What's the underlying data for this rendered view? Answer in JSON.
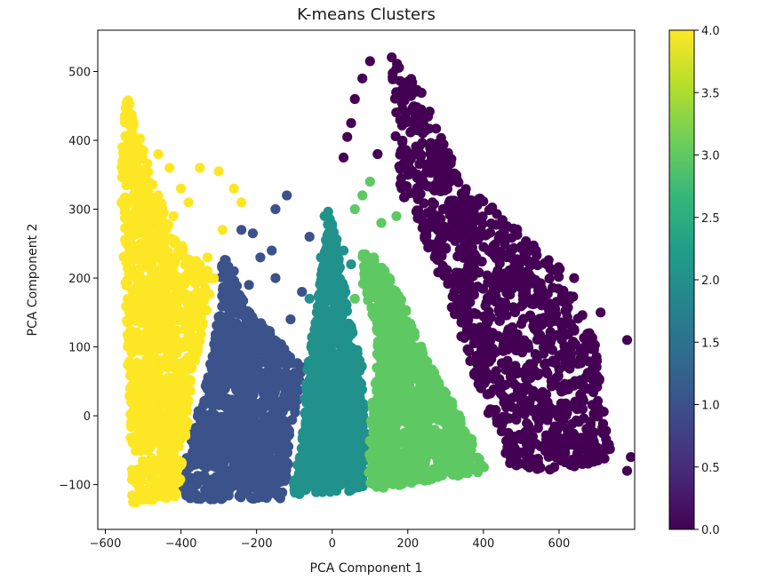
{
  "chart_data": {
    "type": "scatter",
    "title": "K-means Clusters",
    "xlabel": "PCA Component 1",
    "ylabel": "PCA Component 2",
    "xlim": [
      -620,
      800
    ],
    "ylim": [
      -165,
      560
    ],
    "xticks": [
      -600,
      -400,
      -200,
      0,
      200,
      400,
      600
    ],
    "xtick_labels": [
      "−600",
      "−400",
      "−200",
      "0",
      "200",
      "400",
      "600"
    ],
    "yticks": [
      -100,
      0,
      100,
      200,
      300,
      400,
      500
    ],
    "ytick_labels": [
      "−100",
      "0",
      "100",
      "200",
      "300",
      "400",
      "500"
    ],
    "grid": false,
    "colorbar": {
      "min": 0.0,
      "max": 4.0,
      "ticks": [
        0.0,
        0.5,
        1.0,
        1.5,
        2.0,
        2.5,
        3.0,
        3.5,
        4.0
      ],
      "tick_labels": [
        "0.0",
        "0.5",
        "1.0",
        "1.5",
        "2.0",
        "2.5",
        "3.0",
        "3.5",
        "4.0"
      ],
      "colormap": "viridis",
      "stops": [
        "#440154",
        "#482878",
        "#3e4989",
        "#31688e",
        "#26828e",
        "#1f9e89",
        "#35b779",
        "#6ece58",
        "#b5de2b",
        "#fde725"
      ]
    },
    "clusters": [
      {
        "label": 0,
        "color": "#440154",
        "region": [
          [
            155,
            530
          ],
          [
            255,
            455
          ],
          [
            340,
            340
          ],
          [
            430,
            300
          ],
          [
            600,
            220
          ],
          [
            700,
            110
          ],
          [
            740,
            -70
          ],
          [
            545,
            -80
          ],
          [
            470,
            -70
          ],
          [
            400,
            20
          ],
          [
            320,
            150
          ],
          [
            250,
            250
          ],
          [
            185,
            310
          ],
          [
            165,
            420
          ]
        ]
      },
      {
        "label": 1,
        "color": "#3b528b",
        "region": [
          [
            -290,
            240
          ],
          [
            -230,
            160
          ],
          [
            -110,
            95
          ],
          [
            -80,
            70
          ],
          [
            -100,
            -20
          ],
          [
            -130,
            -120
          ],
          [
            -400,
            -122
          ],
          [
            -380,
            -40
          ],
          [
            -330,
            60
          ],
          [
            -300,
            150
          ]
        ]
      },
      {
        "label": 2,
        "color": "#21918c",
        "region": [
          [
            -10,
            300
          ],
          [
            20,
            240
          ],
          [
            40,
            160
          ],
          [
            80,
            80
          ],
          [
            90,
            -40
          ],
          [
            80,
            -108
          ],
          [
            -110,
            -115
          ],
          [
            -80,
            -40
          ],
          [
            -70,
            60
          ],
          [
            -40,
            160
          ]
        ]
      },
      {
        "label": 3,
        "color": "#5ec962",
        "region": [
          [
            80,
            240
          ],
          [
            150,
            210
          ],
          [
            200,
            150
          ],
          [
            250,
            80
          ],
          [
            330,
            10
          ],
          [
            410,
            -80
          ],
          [
            170,
            -102
          ],
          [
            95,
            -108
          ],
          [
            100,
            -20
          ],
          [
            120,
            120
          ],
          [
            80,
            190
          ]
        ]
      },
      {
        "label": 4,
        "color": "#fde725",
        "region": [
          [
            -545,
            470
          ],
          [
            -490,
            370
          ],
          [
            -420,
            260
          ],
          [
            -310,
            200
          ],
          [
            -370,
            60
          ],
          [
            -395,
            -80
          ],
          [
            -410,
            -120
          ],
          [
            -530,
            -128
          ],
          [
            -535,
            0
          ],
          [
            -550,
            200
          ],
          [
            -560,
            350
          ]
        ]
      }
    ],
    "outliers": [
      {
        "label": 0,
        "color": "#440154",
        "points": [
          [
            100,
            515
          ],
          [
            80,
            490
          ],
          [
            60,
            460
          ],
          [
            50,
            425
          ],
          [
            40,
            405
          ],
          [
            30,
            375
          ],
          [
            120,
            380
          ],
          [
            780,
            110
          ],
          [
            790,
            -60
          ],
          [
            780,
            -80
          ],
          [
            640,
            200
          ],
          [
            710,
            150
          ]
        ]
      },
      {
        "label": 1,
        "color": "#3b528b",
        "points": [
          [
            -120,
            320
          ],
          [
            -150,
            300
          ],
          [
            -210,
            265
          ],
          [
            -240,
            270
          ],
          [
            -190,
            230
          ],
          [
            -160,
            240
          ],
          [
            -220,
            190
          ],
          [
            -260,
            210
          ],
          [
            -150,
            200
          ],
          [
            -80,
            180
          ],
          [
            -110,
            140
          ],
          [
            -60,
            260
          ]
        ]
      },
      {
        "label": 2,
        "color": "#21918c",
        "points": [
          [
            -20,
            290
          ],
          [
            10,
            250
          ],
          [
            30,
            240
          ],
          [
            -30,
            230
          ],
          [
            50,
            220
          ],
          [
            -60,
            170
          ],
          [
            -10,
            200
          ]
        ]
      },
      {
        "label": 3,
        "color": "#5ec962",
        "points": [
          [
            100,
            340
          ],
          [
            80,
            320
          ],
          [
            60,
            300
          ],
          [
            130,
            280
          ],
          [
            170,
            290
          ],
          [
            110,
            230
          ],
          [
            90,
            200
          ],
          [
            60,
            170
          ]
        ]
      },
      {
        "label": 4,
        "color": "#fde725",
        "points": [
          [
            -460,
            380
          ],
          [
            -430,
            360
          ],
          [
            -400,
            330
          ],
          [
            -350,
            360
          ],
          [
            -300,
            355
          ],
          [
            -260,
            330
          ],
          [
            -240,
            310
          ],
          [
            -290,
            270
          ],
          [
            -330,
            230
          ],
          [
            -380,
            310
          ],
          [
            -420,
            290
          ]
        ]
      }
    ]
  }
}
